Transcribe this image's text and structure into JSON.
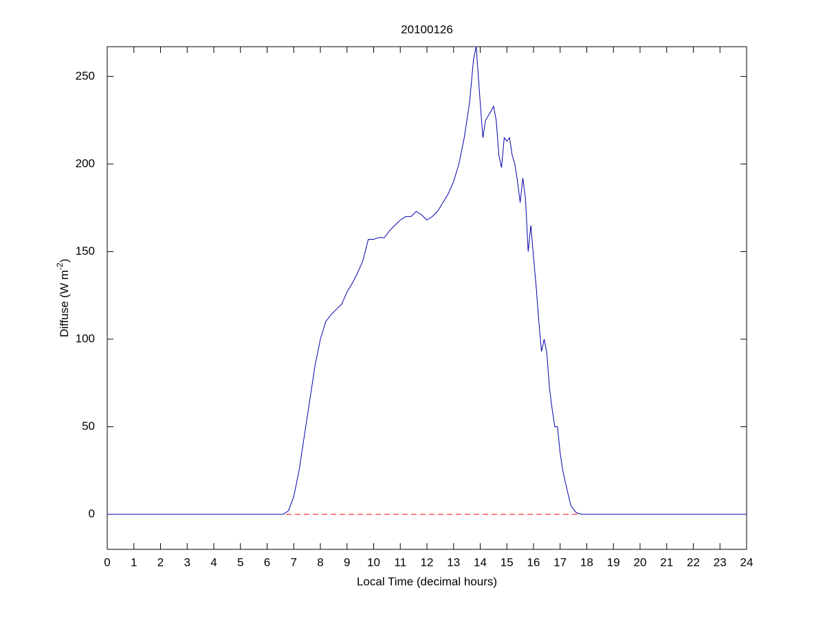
{
  "chart_data": {
    "type": "line",
    "title": "20100126",
    "xlabel": "Local Time (decimal hours)",
    "ylabel": {
      "text": "Diffuse (W m",
      "superscript": "-2",
      "suffix": ")"
    },
    "x": [
      0,
      1,
      2,
      3,
      4,
      5,
      6,
      6.6,
      6.8,
      7.0,
      7.2,
      7.4,
      7.6,
      7.8,
      8.0,
      8.2,
      8.4,
      8.6,
      8.8,
      9.0,
      9.2,
      9.4,
      9.6,
      9.8,
      10.0,
      10.2,
      10.4,
      10.6,
      10.8,
      11.0,
      11.2,
      11.4,
      11.6,
      11.8,
      12.0,
      12.2,
      12.4,
      12.6,
      12.8,
      13.0,
      13.2,
      13.4,
      13.6,
      13.75,
      13.85,
      14.0,
      14.1,
      14.2,
      14.4,
      14.5,
      14.6,
      14.7,
      14.8,
      14.9,
      15.0,
      15.1,
      15.2,
      15.3,
      15.4,
      15.5,
      15.6,
      15.7,
      15.8,
      15.9,
      16.0,
      16.1,
      16.2,
      16.3,
      16.4,
      16.5,
      16.6,
      16.7,
      16.8,
      16.9,
      17.0,
      17.1,
      17.2,
      17.4,
      17.6,
      17.8,
      19,
      20,
      21,
      22,
      23,
      24
    ],
    "series": [
      {
        "name": "Diffuse",
        "color": "#0000aa",
        "values": [
          0,
          0,
          0,
          0,
          0,
          0,
          0,
          0,
          2,
          10,
          25,
          45,
          65,
          85,
          100,
          110,
          114,
          117,
          120,
          127,
          132,
          138,
          145,
          157,
          157,
          158,
          158,
          162,
          165,
          168,
          170,
          170,
          173,
          171,
          168,
          170,
          173,
          178,
          183,
          190,
          200,
          215,
          235,
          260,
          267,
          235,
          215,
          225,
          230,
          233,
          225,
          205,
          198,
          215,
          213,
          215,
          205,
          200,
          190,
          178,
          192,
          180,
          150,
          165,
          147,
          130,
          110,
          93,
          100,
          92,
          72,
          60,
          50,
          50,
          35,
          25,
          18,
          5,
          1,
          0,
          0,
          0,
          0,
          0,
          0,
          0
        ]
      }
    ],
    "reference_line": {
      "value": 0,
      "color": "#ff0000",
      "style": "dashed"
    },
    "xlim": [
      0,
      24
    ],
    "xticks": [
      0,
      1,
      2,
      3,
      4,
      5,
      6,
      7,
      8,
      9,
      10,
      11,
      12,
      13,
      14,
      15,
      16,
      17,
      18,
      19,
      20,
      21,
      22,
      23,
      24
    ],
    "ylim": [
      -20,
      267
    ],
    "yticks": [
      0,
      50,
      100,
      150,
      200,
      250
    ],
    "grid": false
  }
}
